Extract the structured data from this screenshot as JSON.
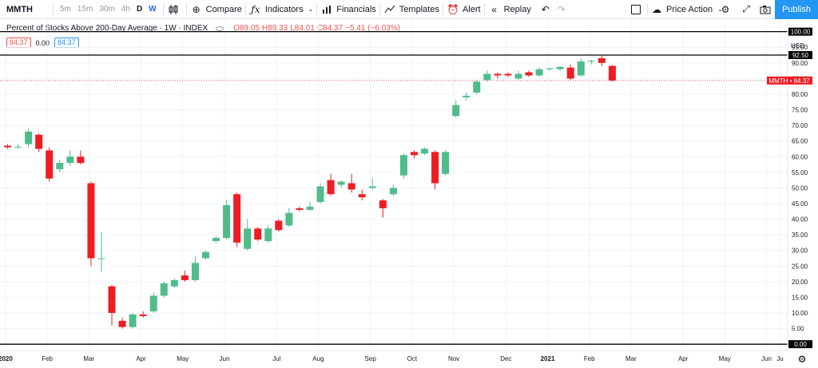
{
  "toolbar": {
    "symbol": "MMTH",
    "intervals": [
      "5m",
      "15m",
      "30m",
      "4h",
      "D",
      "W"
    ],
    "active_interval": "W",
    "compare": "Compare",
    "indicators": "Indicators",
    "financials": "Financials",
    "templates": "Templates",
    "alert": "Alert",
    "replay": "Replay",
    "price_action": "Price Action",
    "publish": "Publish"
  },
  "legend": {
    "title": "Percent of Stocks Above 200-Day Average · 1W · INDEX",
    "open": "O89.05",
    "high": "H89.33",
    "low": "L84.01",
    "close": "C84.37",
    "change": "−5.41 (−6.03%)",
    "value_red": "84.37",
    "value_zero": "0.00",
    "value_blue": "84.37"
  },
  "colors": {
    "up": "#4fbc8a",
    "down": "#ef1c24",
    "accent": "#2196f3",
    "last_price": "#ef1c24"
  },
  "chart_data": {
    "type": "candlestick",
    "title": "Percent of Stocks Above 200-Day Average",
    "ylim": [
      -2,
      104
    ],
    "y_ticks": [
      "0.00",
      "5.00",
      "10.00",
      "15.00",
      "20.00",
      "25.00",
      "30.00",
      "35.00",
      "40.00",
      "45.00",
      "50.00",
      "55.00",
      "60.00",
      "65.00",
      "70.00",
      "75.00",
      "80.00",
      "85.00",
      "90.00",
      "95.00",
      "100.00"
    ],
    "currency": "USD",
    "x_ticks": [
      {
        "label": "2020",
        "bar": 0.3,
        "bold": true
      },
      {
        "label": "Feb",
        "bar": 4.3
      },
      {
        "label": "Mar",
        "bar": 8.3
      },
      {
        "label": "Apr",
        "bar": 13.3
      },
      {
        "label": "May",
        "bar": 17.3
      },
      {
        "label": "Jun",
        "bar": 21.3
      },
      {
        "label": "Jul",
        "bar": 26.3
      },
      {
        "label": "Aug",
        "bar": 30.3
      },
      {
        "label": "Sep",
        "bar": 35.3
      },
      {
        "label": "Oct",
        "bar": 39.3
      },
      {
        "label": "Nov",
        "bar": 43.3
      },
      {
        "label": "Dec",
        "bar": 48.3
      },
      {
        "label": "2021",
        "bar": 52.3,
        "bold": true
      },
      {
        "label": "Feb",
        "bar": 56.3
      },
      {
        "label": "Mar",
        "bar": 60.3
      },
      {
        "label": "Apr",
        "bar": 65.3
      },
      {
        "label": "May",
        "bar": 69.3
      },
      {
        "label": "Jun",
        "bar": 73.3
      },
      {
        "label": "Ju",
        "bar": 74.6
      }
    ],
    "horizontal_lines": [
      {
        "value": 100,
        "label": "100.00"
      },
      {
        "value": 92.5,
        "label": "92.50"
      },
      {
        "value": 0,
        "label": "0.00"
      }
    ],
    "last_price": {
      "symbol": "MMTH",
      "value": 84.37,
      "label": "84.37"
    },
    "candles": [
      {
        "o": 63.5,
        "h": 64.0,
        "l": 62.5,
        "c": 63.0
      },
      {
        "o": 63.0,
        "h": 64.0,
        "l": 62.5,
        "c": 63.2
      },
      {
        "o": 64.0,
        "h": 69.0,
        "l": 63.0,
        "c": 68.0
      },
      {
        "o": 67.0,
        "h": 67.5,
        "l": 61.5,
        "c": 62.5
      },
      {
        "o": 62.0,
        "h": 63.0,
        "l": 52.0,
        "c": 53.0
      },
      {
        "o": 56.0,
        "h": 59.0,
        "l": 55.0,
        "c": 58.0
      },
      {
        "o": 58.0,
        "h": 62.0,
        "l": 57.0,
        "c": 60.0
      },
      {
        "o": 60.0,
        "h": 62.0,
        "l": 57.5,
        "c": 58.0
      },
      {
        "o": 51.5,
        "h": 52.0,
        "l": 25.0,
        "c": 27.5
      },
      {
        "o": 27.5,
        "h": 36.0,
        "l": 23.0,
        "c": 27.5
      },
      {
        "o": 18.5,
        "h": 19.0,
        "l": 6.0,
        "c": 10.0
      },
      {
        "o": 7.5,
        "h": 8.5,
        "l": 5.0,
        "c": 5.5
      },
      {
        "o": 5.5,
        "h": 10.0,
        "l": 5.0,
        "c": 9.5
      },
      {
        "o": 9.5,
        "h": 10.5,
        "l": 8.5,
        "c": 9.0
      },
      {
        "o": 10.5,
        "h": 16.5,
        "l": 10.0,
        "c": 15.5
      },
      {
        "o": 15.5,
        "h": 20.0,
        "l": 15.0,
        "c": 19.5
      },
      {
        "o": 18.5,
        "h": 21.0,
        "l": 18.0,
        "c": 20.5
      },
      {
        "o": 22.0,
        "h": 23.5,
        "l": 20.0,
        "c": 20.5
      },
      {
        "o": 20.5,
        "h": 28.0,
        "l": 20.0,
        "c": 26.0
      },
      {
        "o": 27.5,
        "h": 30.0,
        "l": 27.0,
        "c": 29.5
      },
      {
        "o": 33.0,
        "h": 34.5,
        "l": 32.5,
        "c": 34.0
      },
      {
        "o": 34.0,
        "h": 46.0,
        "l": 33.5,
        "c": 44.5
      },
      {
        "o": 48.0,
        "h": 48.5,
        "l": 31.0,
        "c": 32.5
      },
      {
        "o": 30.5,
        "h": 40.0,
        "l": 30.0,
        "c": 37.0
      },
      {
        "o": 37.0,
        "h": 37.5,
        "l": 33.0,
        "c": 33.5
      },
      {
        "o": 33.0,
        "h": 38.0,
        "l": 32.5,
        "c": 37.0
      },
      {
        "o": 39.5,
        "h": 40.0,
        "l": 36.0,
        "c": 36.5
      },
      {
        "o": 38.0,
        "h": 43.5,
        "l": 37.5,
        "c": 42.0
      },
      {
        "o": 43.5,
        "h": 44.0,
        "l": 42.5,
        "c": 43.0
      },
      {
        "o": 43.0,
        "h": 45.5,
        "l": 42.5,
        "c": 44.0
      },
      {
        "o": 45.5,
        "h": 51.5,
        "l": 45.0,
        "c": 50.5
      },
      {
        "o": 52.5,
        "h": 54.5,
        "l": 47.5,
        "c": 48.0
      },
      {
        "o": 51.0,
        "h": 52.5,
        "l": 50.0,
        "c": 52.0
      },
      {
        "o": 51.5,
        "h": 54.5,
        "l": 48.5,
        "c": 49.5
      },
      {
        "o": 48.0,
        "h": 49.5,
        "l": 46.0,
        "c": 47.0
      },
      {
        "o": 50.0,
        "h": 53.0,
        "l": 49.5,
        "c": 50.5
      },
      {
        "o": 46.0,
        "h": 46.5,
        "l": 40.5,
        "c": 43.5
      },
      {
        "o": 48.0,
        "h": 51.0,
        "l": 47.5,
        "c": 50.0
      },
      {
        "o": 54.0,
        "h": 61.0,
        "l": 53.0,
        "c": 60.5
      },
      {
        "o": 61.5,
        "h": 62.0,
        "l": 59.5,
        "c": 60.5
      },
      {
        "o": 61.0,
        "h": 63.0,
        "l": 60.5,
        "c": 62.5
      },
      {
        "o": 61.5,
        "h": 62.0,
        "l": 49.5,
        "c": 51.5
      },
      {
        "o": 54.5,
        "h": 62.0,
        "l": 54.0,
        "c": 61.5
      },
      {
        "o": 73.0,
        "h": 78.0,
        "l": 72.5,
        "c": 76.5
      },
      {
        "o": 79.0,
        "h": 80.5,
        "l": 78.0,
        "c": 79.5
      },
      {
        "o": 80.5,
        "h": 84.5,
        "l": 80.0,
        "c": 84.0
      },
      {
        "o": 84.5,
        "h": 87.5,
        "l": 84.0,
        "c": 86.5
      },
      {
        "o": 86.5,
        "h": 87.0,
        "l": 85.0,
        "c": 86.0
      },
      {
        "o": 86.5,
        "h": 87.0,
        "l": 85.5,
        "c": 86.0
      },
      {
        "o": 85.0,
        "h": 87.5,
        "l": 84.5,
        "c": 86.5
      },
      {
        "o": 87.0,
        "h": 87.5,
        "l": 85.5,
        "c": 86.0
      },
      {
        "o": 86.0,
        "h": 88.5,
        "l": 85.5,
        "c": 88.0
      },
      {
        "o": 88.0,
        "h": 88.5,
        "l": 87.5,
        "c": 88.3
      },
      {
        "o": 88.0,
        "h": 89.0,
        "l": 87.5,
        "c": 88.7
      },
      {
        "o": 88.5,
        "h": 89.5,
        "l": 84.5,
        "c": 85.0
      },
      {
        "o": 86.0,
        "h": 91.5,
        "l": 85.5,
        "c": 90.5
      },
      {
        "o": 90.5,
        "h": 91.0,
        "l": 89.5,
        "c": 90.7
      },
      {
        "o": 91.5,
        "h": 92.5,
        "l": 89.0,
        "c": 90.0
      },
      {
        "o": 89.05,
        "h": 89.33,
        "l": 84.01,
        "c": 84.37
      }
    ]
  }
}
